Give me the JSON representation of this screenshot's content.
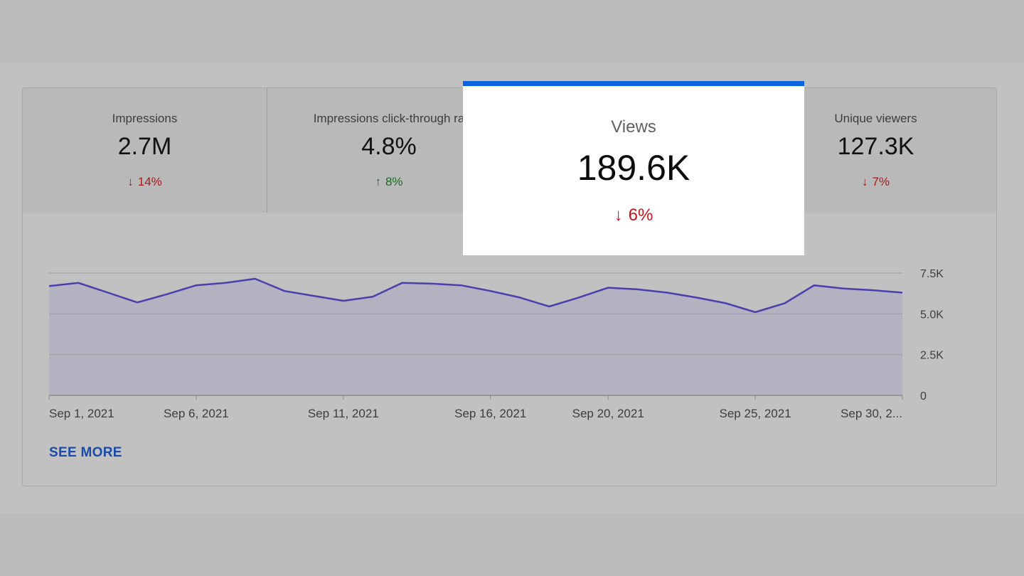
{
  "metrics": [
    {
      "label": "Impressions",
      "value": "2.7M",
      "delta": "14%",
      "direction": "down",
      "arrow": "↓"
    },
    {
      "label": "Impressions click-through ra",
      "value": "4.8%",
      "delta": "8%",
      "direction": "up",
      "arrow": "↑"
    },
    {
      "label": "Views",
      "value": "189.6K",
      "delta": "6%",
      "direction": "down",
      "arrow": "↓"
    },
    {
      "label": "Unique viewers",
      "value": "127.3K",
      "delta": "7%",
      "direction": "down",
      "arrow": "↓"
    }
  ],
  "see_more_label": "SEE MORE",
  "colors": {
    "line": "#4b3fae",
    "area": "#b2b2c0",
    "highlight_bar": "#0b63de",
    "down": "#a31b1b",
    "up": "#1d6b22"
  },
  "chart_data": {
    "type": "area",
    "x": [
      "Sep 1",
      "Sep 2",
      "Sep 3",
      "Sep 4",
      "Sep 5",
      "Sep 6",
      "Sep 7",
      "Sep 8",
      "Sep 9",
      "Sep 10",
      "Sep 11",
      "Sep 12",
      "Sep 13",
      "Sep 14",
      "Sep 15",
      "Sep 16",
      "Sep 17",
      "Sep 18",
      "Sep 19",
      "Sep 20",
      "Sep 21",
      "Sep 22",
      "Sep 23",
      "Sep 24",
      "Sep 25",
      "Sep 26",
      "Sep 27",
      "Sep 28",
      "Sep 29",
      "Sep 30"
    ],
    "series": [
      {
        "values": [
          6700,
          6900,
          6300,
          5700,
          6200,
          6750,
          6900,
          7150,
          6400,
          6100,
          5800,
          6050,
          6900,
          6850,
          6750,
          6400,
          6000,
          5450,
          6000,
          6600,
          6500,
          6300,
          6000,
          5650,
          5100,
          5650,
          6750,
          6550,
          6450,
          6300
        ]
      }
    ],
    "x_tick_labels": [
      "Sep 1, 2021",
      "Sep 6, 2021",
      "Sep 11, 2021",
      "Sep 16, 2021",
      "Sep 20, 2021",
      "Sep 25, 2021",
      "Sep 30, 2..."
    ],
    "x_tick_dates": [
      "Sep 1",
      "Sep 6",
      "Sep 11",
      "Sep 16",
      "Sep 20",
      "Sep 25",
      "Sep 30"
    ],
    "y_ticks": [
      0,
      2500,
      5000,
      7500
    ],
    "y_tick_labels": [
      "0",
      "2.5K",
      "5.0K",
      "7.5K"
    ],
    "ylim": [
      0,
      7500
    ],
    "grid": true,
    "y_axis_position": "right"
  }
}
